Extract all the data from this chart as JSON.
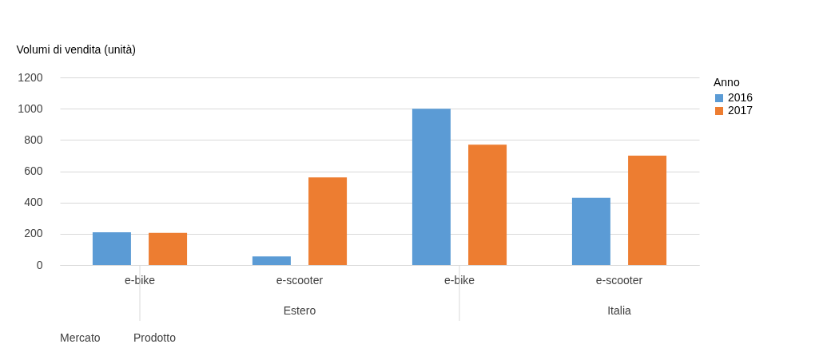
{
  "chart_data": {
    "type": "bar",
    "ylabel": "Volumi di vendita (unità)",
    "legend_title": "Anno",
    "categories": [
      "e-bike",
      "e-scooter",
      "e-bike",
      "e-scooter"
    ],
    "series": [
      {
        "name": "2016",
        "color": "#5b9bd5",
        "values": [
          210,
          55,
          1000,
          430
        ]
      },
      {
        "name": "2017",
        "color": "#ed7d31",
        "values": [
          205,
          560,
          770,
          700
        ]
      }
    ],
    "ylim": [
      0,
      1200
    ],
    "yticks": [
      0,
      200,
      400,
      600,
      800,
      1000,
      1200
    ],
    "grid": "y",
    "legend": "right",
    "annotations": [
      "Estero",
      "Italia",
      "Mercato",
      "Prodotto"
    ]
  }
}
